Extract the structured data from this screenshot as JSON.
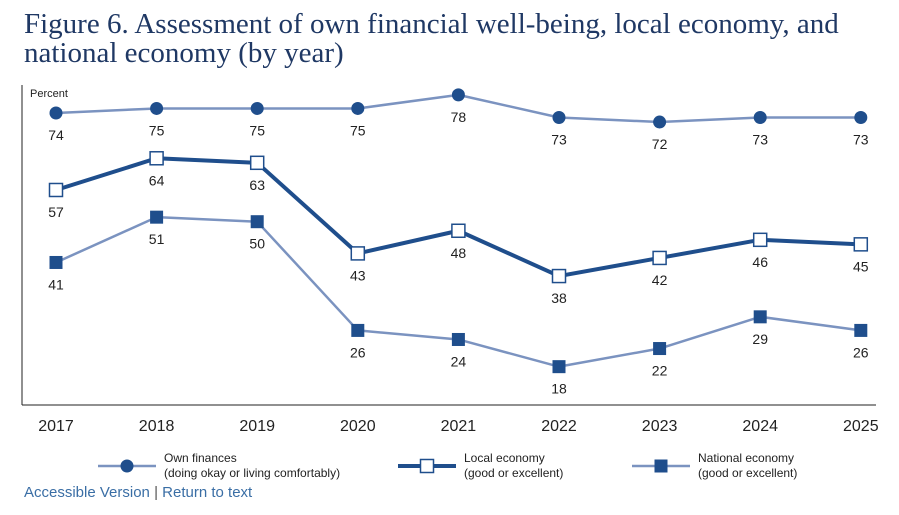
{
  "title": "Figure 6. Assessment of own financial well-being, local economy, and national economy (by year)",
  "colors": {
    "dark": "#1f4e8c",
    "light": "#7b93c0",
    "axis": "#222222",
    "title": "#1f3864",
    "link": "#3a6ea5"
  },
  "chart_data": {
    "type": "line",
    "title": "Figure 6. Assessment of own financial well-being, local economy, and national economy (by year)",
    "ylabel": "Percent",
    "xlabel": "",
    "categories": [
      "2017",
      "2018",
      "2019",
      "2020",
      "2021",
      "2022",
      "2023",
      "2024",
      "2025"
    ],
    "ylim": [
      10,
      80
    ],
    "grid": false,
    "legend_position": "bottom",
    "series": [
      {
        "name": "Own finances",
        "legend_line1": "Own finances",
        "legend_line2": "(doing okay or living comfortably)",
        "marker": "circle",
        "style": "thin",
        "color": "#1f4e8c",
        "line_color": "#7b93c0",
        "values": [
          74,
          75,
          75,
          75,
          78,
          73,
          72,
          73,
          73
        ]
      },
      {
        "name": "Local economy",
        "legend_line1": "Local economy",
        "legend_line2": "(good or excellent)",
        "marker": "open-square",
        "style": "thick",
        "color": "#1f4e8c",
        "line_color": "#1f4e8c",
        "values": [
          57,
          64,
          63,
          43,
          48,
          38,
          42,
          46,
          45
        ]
      },
      {
        "name": "National economy",
        "legend_line1": "National economy",
        "legend_line2": "(good or excellent)",
        "marker": "square",
        "style": "thin",
        "color": "#1f4e8c",
        "line_color": "#7b93c0",
        "values": [
          41,
          51,
          50,
          26,
          24,
          18,
          22,
          29,
          26
        ]
      }
    ]
  },
  "footer": {
    "accessible_label": "Accessible Version",
    "separator": "|",
    "return_label": "Return to text"
  }
}
